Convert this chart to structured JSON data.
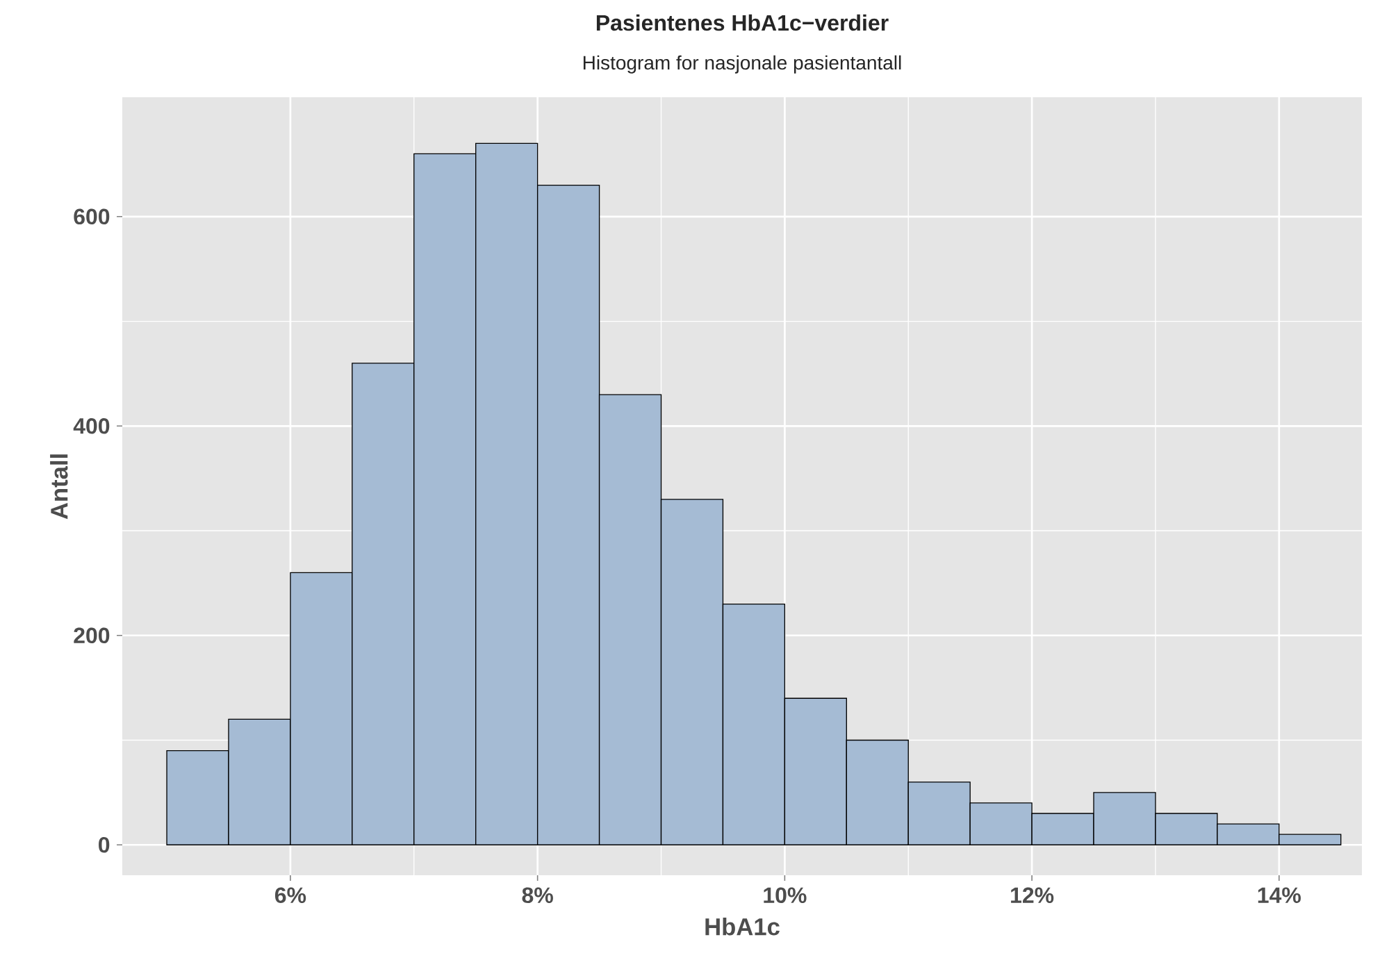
{
  "chart_data": {
    "type": "histogram",
    "title": "Pasientenes HbA1c−verdier",
    "subtitle": "Histogram for nasjonale pasientantall",
    "xlabel": "HbA1c",
    "ylabel": "Antall",
    "bins": [
      5,
      5.5,
      6,
      6.5,
      7,
      7.5,
      8,
      8.5,
      9,
      9.5,
      10,
      10.5,
      11,
      11.5,
      12,
      12.5,
      13,
      13.5,
      14,
      14.5
    ],
    "values": [
      90,
      120,
      260,
      460,
      660,
      670,
      630,
      430,
      330,
      230,
      140,
      100,
      60,
      40,
      30,
      50,
      30,
      20,
      10
    ],
    "color": "#a5bbd4",
    "xlim": [
      4.64,
      14.67
    ],
    "ylim": [
      -29,
      714
    ],
    "xticks": [
      {
        "value": 6,
        "label": "6%"
      },
      {
        "value": 8,
        "label": "8%"
      },
      {
        "value": 10,
        "label": "10%"
      },
      {
        "value": 12,
        "label": "12%"
      },
      {
        "value": 14,
        "label": "14%"
      }
    ],
    "yticks": [
      0,
      200,
      400,
      600
    ],
    "grid": true
  }
}
